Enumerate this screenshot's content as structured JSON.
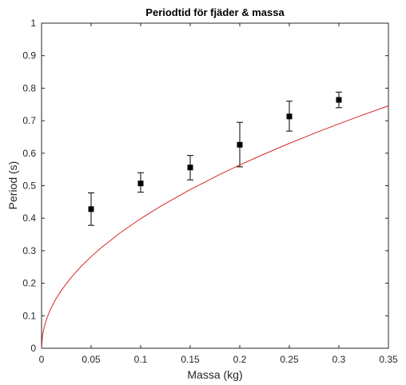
{
  "chart_data": {
    "type": "scatter",
    "title": "Periodtid för fjäder & massa",
    "xlabel": "Massa (kg)",
    "ylabel": "Period (s)",
    "xlim": [
      0,
      0.35
    ],
    "ylim": [
      0,
      1
    ],
    "grid": false,
    "xticks": [
      0,
      0.05,
      0.1,
      0.15,
      0.2,
      0.25,
      0.3,
      0.35
    ],
    "xtick_labels": [
      "0",
      "0.05",
      "0.1",
      "0.15",
      "0.2",
      "0.25",
      "0.3",
      "0.35"
    ],
    "yticks": [
      0,
      0.1,
      0.2,
      0.3,
      0.4,
      0.5,
      0.6,
      0.7,
      0.8,
      0.9,
      1
    ],
    "ytick_labels": [
      "0",
      "0.1",
      "0.2",
      "0.3",
      "0.4",
      "0.5",
      "0.6",
      "0.7",
      "0.8",
      "0.9",
      "1"
    ],
    "series": [
      {
        "type": "scatter",
        "color": "#000000",
        "marker": "square",
        "x": [
          0.05,
          0.1,
          0.15,
          0.2,
          0.25,
          0.3
        ],
        "y": [
          0.428,
          0.507,
          0.556,
          0.626,
          0.713,
          0.764
        ],
        "err_low": [
          0.378,
          0.48,
          0.518,
          0.558,
          0.668,
          0.74
        ],
        "err_high": [
          0.478,
          0.54,
          0.593,
          0.695,
          0.76,
          0.788
        ]
      },
      {
        "type": "line",
        "color": "#d62728",
        "x": [
          0,
          0.001,
          0.0025,
          0.005,
          0.0075,
          0.01,
          0.015,
          0.02,
          0.03,
          0.04,
          0.05,
          0.06,
          0.08,
          0.1,
          0.12,
          0.15,
          0.18,
          0.2,
          0.22,
          0.25,
          0.28,
          0.3,
          0.32,
          0.35
        ],
        "y": [
          0,
          0.0399,
          0.063,
          0.0891,
          0.1091,
          0.126,
          0.1544,
          0.1782,
          0.2183,
          0.2521,
          0.2818,
          0.3087,
          0.3565,
          0.3986,
          0.4366,
          0.4882,
          0.5348,
          0.5637,
          0.5912,
          0.6302,
          0.6669,
          0.6903,
          0.713,
          0.7457
        ]
      }
    ]
  }
}
